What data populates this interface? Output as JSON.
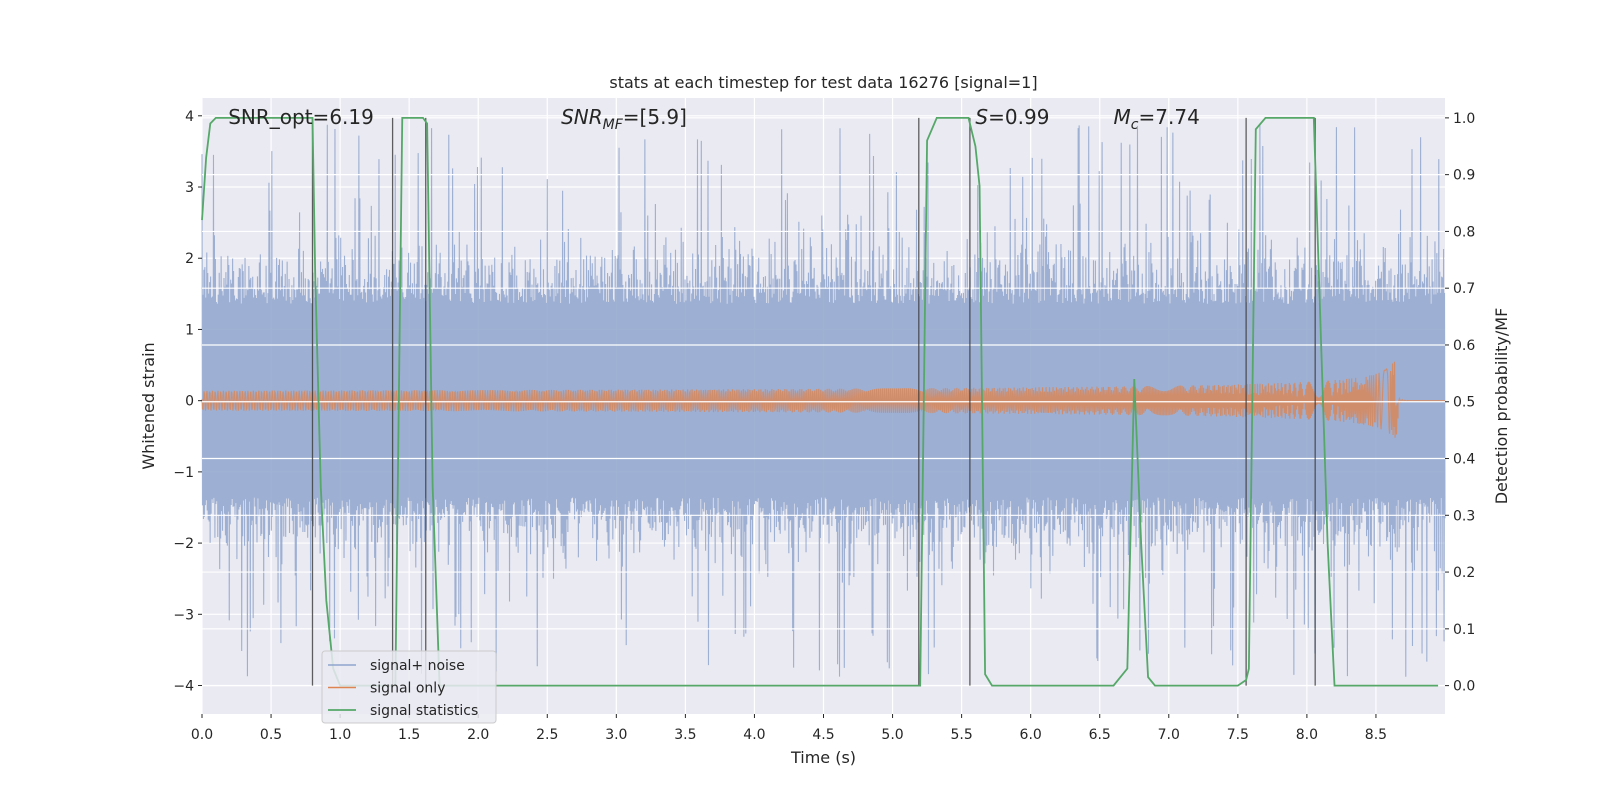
{
  "chart_data": {
    "type": "line",
    "title": "stats at each timestep for test data 16276 [signal=1]",
    "xlabel": "Time (s)",
    "ylabel_left": "Whitened strain",
    "ylabel_right": "Detection probability/MF",
    "xlim": [
      0,
      9.0
    ],
    "ylim_left": [
      -4.4,
      4.25
    ],
    "ylim_right": [
      -0.05,
      1.035
    ],
    "xticks": [
      "0.0",
      "0.5",
      "1.0",
      "1.5",
      "2.0",
      "2.5",
      "3.0",
      "3.5",
      "4.0",
      "4.5",
      "5.0",
      "5.5",
      "6.0",
      "6.5",
      "7.0",
      "7.5",
      "8.0",
      "8.5"
    ],
    "xtick_values": [
      0,
      0.5,
      1,
      1.5,
      2,
      2.5,
      3,
      3.5,
      4,
      4.5,
      5,
      5.5,
      6,
      6.5,
      7,
      7.5,
      8,
      8.5
    ],
    "yticks_left": [
      "4",
      "3",
      "2",
      "1",
      "0",
      "−1",
      "−2",
      "−3",
      "−4"
    ],
    "ytick_left_values": [
      4,
      3,
      2,
      1,
      0,
      -1,
      -2,
      -3,
      -4
    ],
    "yticks_right": [
      "1.0",
      "0.9",
      "0.8",
      "0.7",
      "0.6",
      "0.5",
      "0.4",
      "0.3",
      "0.2",
      "0.1",
      "0.0"
    ],
    "ytick_right_values": [
      1.0,
      0.9,
      0.8,
      0.7,
      0.6,
      0.5,
      0.4,
      0.3,
      0.2,
      0.1,
      0.0
    ],
    "grid": true,
    "legend_position": "lower-left",
    "annotations": [
      {
        "text": "SNR_opt=6.19",
        "x": 0.19
      },
      {
        "text": "SNR",
        "sub": "MF",
        "rest": "=[5.9]",
        "italic": true,
        "x": 2.6
      },
      {
        "text": "S",
        "rest": "=0.99",
        "italic": true,
        "x": 5.6
      },
      {
        "text": "M",
        "sub": "c",
        "rest": "=7.74",
        "italic": true,
        "x": 6.6
      }
    ],
    "series": [
      {
        "name": "signal+ noise",
        "color": "#8fa4cc",
        "kind": "noise",
        "t_range": [
          0,
          9.0
        ],
        "envelope_typical": 1.6,
        "envelope_max": 3.9
      },
      {
        "name": "signal only",
        "color": "#dd8452",
        "kind": "chirp",
        "t_start": 0,
        "t_merger": 8.66,
        "peak_amplitude": 0.95
      },
      {
        "name": "signal statistics",
        "color": "#55a868",
        "kind": "line",
        "axis": "right",
        "x": [
          0.0,
          0.03,
          0.06,
          0.1,
          0.15,
          0.8,
          0.82,
          0.86,
          0.9,
          0.95,
          1.0,
          1.4,
          1.45,
          1.6,
          1.63,
          1.67,
          1.72,
          5.2,
          5.25,
          5.32,
          5.55,
          5.6,
          5.63,
          5.67,
          5.72,
          6.6,
          6.7,
          6.75,
          6.8,
          6.85,
          6.9,
          7.5,
          7.56,
          7.58,
          7.63,
          7.7,
          8.05,
          8.15,
          8.2,
          8.95
        ],
        "y": [
          0.82,
          0.93,
          0.99,
          1.0,
          1.0,
          1.0,
          0.72,
          0.35,
          0.15,
          0.03,
          0.0,
          0.0,
          1.0,
          1.0,
          0.99,
          0.35,
          0.0,
          0.0,
          0.96,
          1.0,
          1.0,
          0.95,
          0.88,
          0.02,
          0.0,
          0.0,
          0.03,
          0.54,
          0.25,
          0.015,
          0.0,
          0.0,
          0.01,
          0.03,
          0.98,
          1.0,
          1.0,
          0.25,
          0.0,
          0.0
        ]
      }
    ],
    "vertical_lines_x": [
      0.8,
      1.38,
      1.62,
      5.19,
      5.56,
      7.56,
      8.06
    ]
  }
}
